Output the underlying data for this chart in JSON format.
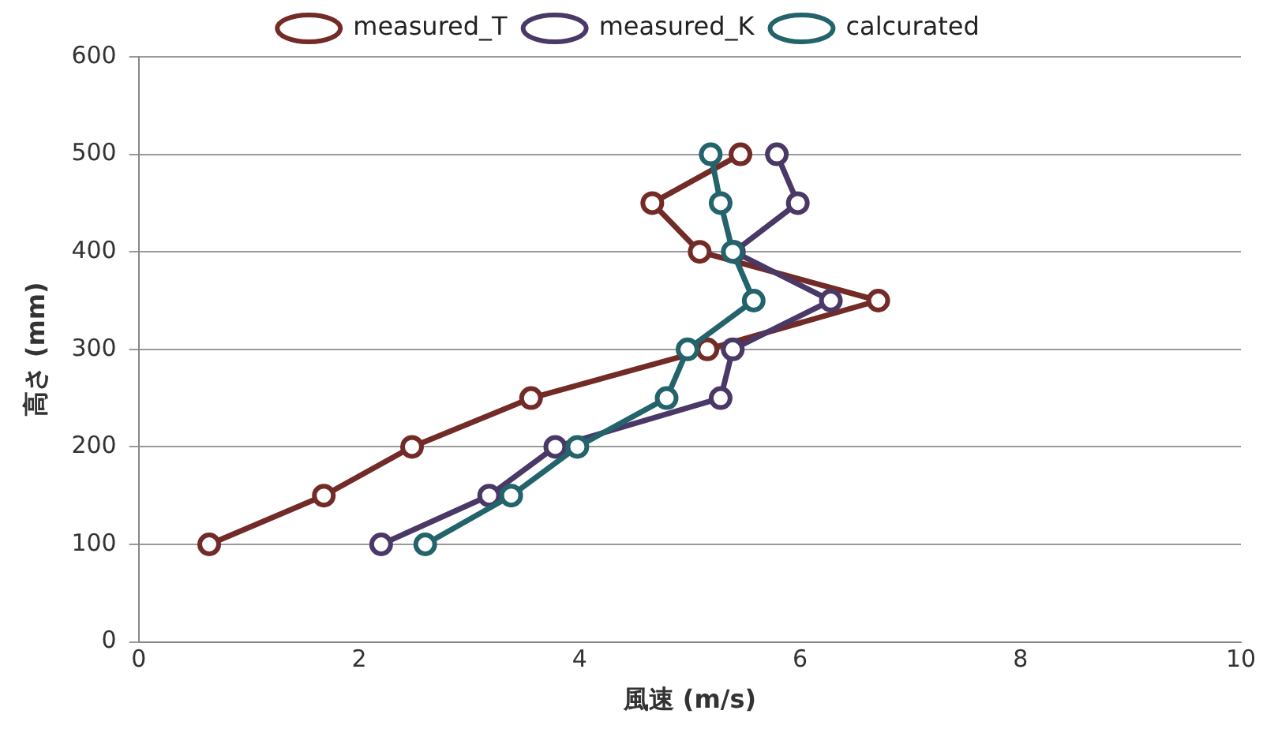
{
  "chart_data": {
    "type": "line",
    "xlabel": "風速 (m/s)",
    "ylabel": "高さ (mm)",
    "xlim": [
      0,
      10
    ],
    "xticks": [
      0,
      2,
      4,
      6,
      8,
      10
    ],
    "ylim": [
      0,
      600
    ],
    "yticks": [
      0,
      100,
      200,
      300,
      400,
      500,
      600
    ],
    "grid": "y",
    "legend": "top",
    "marker": "circle",
    "line_style": "solid",
    "series": [
      {
        "name": "measured_T",
        "color": "#722b27",
        "x": [
          0.64,
          1.68,
          2.48,
          3.56,
          5.16,
          6.71,
          5.09,
          4.66,
          5.46
        ],
        "values": [
          100,
          150,
          200,
          250,
          300,
          350,
          400,
          450,
          500
        ]
      },
      {
        "name": "measured_K",
        "color": "#4a3866",
        "x": [
          2.2,
          3.18,
          3.78,
          5.28,
          5.39,
          6.28,
          5.4,
          5.98,
          5.79
        ],
        "values": [
          100,
          150,
          200,
          250,
          300,
          350,
          400,
          450,
          500
        ]
      },
      {
        "name": "calcurated",
        "color": "#23636b",
        "x": [
          2.6,
          3.38,
          3.98,
          4.79,
          4.98,
          5.58,
          5.39,
          5.28,
          5.19
        ],
        "values": [
          100,
          150,
          200,
          250,
          300,
          350,
          400,
          450,
          500
        ]
      }
    ]
  }
}
